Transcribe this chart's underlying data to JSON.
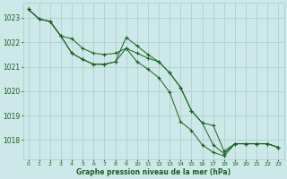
{
  "title": "Graphe pression niveau de la mer (hPa)",
  "background_color": "#cce8e8",
  "grid_color": "#b0d0d0",
  "line_color": "#1a6020",
  "marker_color": "#1a6020",
  "xlim": [
    -0.5,
    23.5
  ],
  "ylim": [
    1017.2,
    1023.6
  ],
  "yticks": [
    1018,
    1019,
    1020,
    1021,
    1022,
    1023
  ],
  "xtick_labels": [
    "0",
    "1",
    "2",
    "3",
    "4",
    "5",
    "6",
    "7",
    "8",
    "9",
    "10",
    "11",
    "12",
    "13",
    "14",
    "15",
    "16",
    "17",
    "18",
    "19",
    "20",
    "21",
    "22",
    "23"
  ],
  "series": [
    [
      1023.35,
      1022.95,
      1022.85,
      1022.25,
      1022.15,
      1021.75,
      1021.55,
      1021.5,
      1021.55,
      1021.75,
      1021.55,
      1021.35,
      1021.2,
      1020.75,
      1020.15,
      1019.2,
      1018.7,
      1018.6,
      1017.55,
      1017.85,
      1017.85,
      1017.85,
      1017.85,
      1017.7
    ],
    [
      1023.35,
      1022.95,
      1022.85,
      1022.25,
      1021.55,
      1021.3,
      1021.1,
      1021.1,
      1021.2,
      1022.2,
      1021.85,
      1021.5,
      1021.2,
      1020.75,
      1020.15,
      1019.2,
      1018.7,
      1017.8,
      1017.45,
      1017.85,
      1017.85,
      1017.85,
      1017.85,
      1017.7
    ],
    [
      1023.35,
      1022.95,
      1022.85,
      1022.25,
      1021.55,
      1021.3,
      1021.1,
      1021.1,
      1021.2,
      1021.75,
      1021.2,
      1020.9,
      1020.55,
      1019.95,
      1018.75,
      1018.4,
      1017.8,
      1017.5,
      1017.35,
      1017.85,
      1017.85,
      1017.85,
      1017.85,
      1017.7
    ]
  ]
}
